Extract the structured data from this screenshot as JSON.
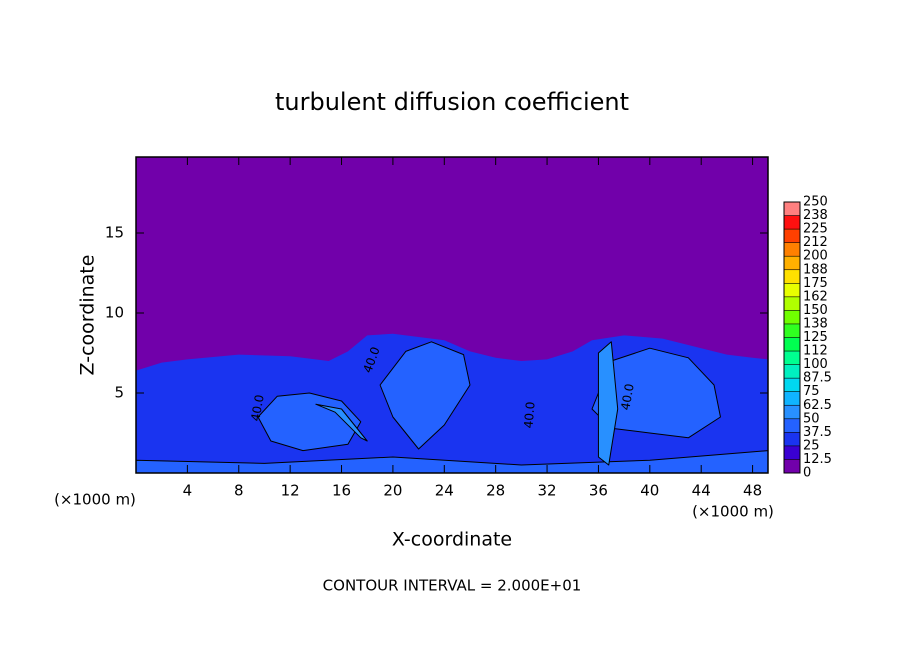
{
  "chart_data": {
    "type": "contourf",
    "title": "turbulent diffusion coefficient",
    "xlabel": "X-coordinate",
    "ylabel": "Z-coordinate",
    "x_unit_left": "(×1000 m)",
    "x_unit_right": "(×1000 m)",
    "note": "CONTOUR INTERVAL = 2.000E+01",
    "xlim": [
      0,
      49.2
    ],
    "ylim": [
      0,
      19.75
    ],
    "xticks": [
      4,
      8,
      12,
      16,
      20,
      24,
      28,
      32,
      36,
      40,
      44,
      48
    ],
    "yticks": [
      5,
      10,
      15
    ],
    "background_level": 0,
    "colorbar": {
      "lim": [
        0,
        250
      ],
      "ticks": [
        0,
        12.5,
        25,
        37.5,
        50,
        62.5,
        75,
        87.5,
        100,
        {
          "value": 112.5,
          "label": "112"
        },
        125,
        {
          "value": 137.5,
          "label": "138"
        },
        150,
        {
          "value": 162.5,
          "label": "162"
        },
        175,
        {
          "value": 187.5,
          "label": "188"
        },
        200,
        {
          "value": 212.5,
          "label": "212"
        },
        225,
        {
          "value": 237.5,
          "label": "238"
        },
        250
      ],
      "colors": [
        "#7100aa",
        "#3a00d2",
        "#1a34f0",
        "#2462ff",
        "#2890ff",
        "#10b4ff",
        "#00d8f0",
        "#00f0c0",
        "#00ff90",
        "#00ff50",
        "#30ff20",
        "#70ff00",
        "#b0ff00",
        "#e8ff00",
        "#ffe000",
        "#ffb000",
        "#ff8000",
        "#ff4000",
        "#ff1010",
        "#ff8080"
      ]
    },
    "regions": [
      {
        "level": 30,
        "x": [
          0,
          2,
          4,
          8,
          12,
          15,
          16.5,
          18,
          20,
          24,
          26,
          28,
          30,
          32,
          34,
          35.5,
          38,
          41,
          44,
          46,
          48,
          49.2,
          49.2,
          0
        ],
        "z": [
          6.4,
          6.9,
          7.1,
          7.4,
          7.3,
          7.0,
          7.6,
          8.6,
          8.7,
          8.3,
          7.6,
          7.2,
          7.0,
          7.1,
          7.6,
          8.3,
          8.6,
          8.4,
          7.8,
          7.4,
          7.2,
          7.1,
          0,
          0
        ]
      },
      {
        "level": 45,
        "x": [
          0,
          10,
          20,
          30,
          40,
          49.2,
          49.2,
          0
        ],
        "z": [
          0.8,
          0.6,
          1.0,
          0.5,
          0.8,
          1.4,
          0,
          0
        ]
      },
      {
        "level": 45,
        "x": [
          9.5,
          11,
          13.5,
          16,
          17.5,
          16.5,
          13,
          10.5
        ],
        "z": [
          3.5,
          4.8,
          5.0,
          4.5,
          3.2,
          1.8,
          1.4,
          2.0
        ]
      },
      {
        "level": 45,
        "x": [
          19,
          21,
          23,
          25.5,
          26,
          24,
          22,
          20
        ],
        "z": [
          5.5,
          7.6,
          8.2,
          7.4,
          5.5,
          3.0,
          1.5,
          3.5
        ]
      },
      {
        "level": 45,
        "x": [
          35.5,
          37,
          40,
          43,
          45,
          45.5,
          43,
          40,
          37
        ],
        "z": [
          4,
          7,
          7.8,
          7.2,
          5.5,
          3.5,
          2.2,
          2.5,
          2.8
        ]
      },
      {
        "level": 55,
        "x": [
          36,
          37,
          37.5,
          36.8,
          36
        ],
        "z": [
          7.5,
          8.2,
          4,
          0.5,
          1
        ]
      },
      {
        "level": 60,
        "x": [
          14,
          16,
          18,
          17.5,
          15.5
        ],
        "z": [
          4.3,
          4.0,
          2.0,
          2.2,
          3.8
        ]
      }
    ],
    "contour_labels": [
      "40.0",
      "40.0",
      "40.0",
      "40.0"
    ]
  }
}
